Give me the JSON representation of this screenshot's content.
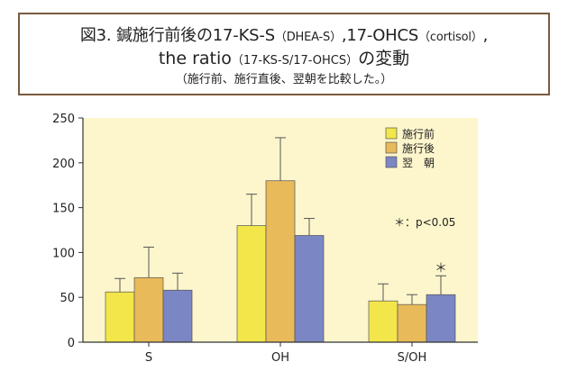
{
  "title": {
    "prefix": "図3. 鍼施行前後の17-KS-S",
    "p1": "（DHEA-S）",
    "mid1": ",17-OHCS",
    "p2": "（cortisol）",
    "comma": ",",
    "line2a": "the ratio",
    "line2b": "（17-KS-S/17-OHCS）",
    "line2c": "の変動",
    "subtitle": "（施行前、施行直後、翌朝を比較した。）"
  },
  "chart_data": {
    "type": "bar",
    "categories": [
      "S",
      "OH",
      "S/OH"
    ],
    "ylim": [
      0,
      250
    ],
    "yticks": [
      "0",
      "50",
      "100",
      "150",
      "200",
      "250"
    ],
    "grid": false,
    "legend_position": "top-right",
    "series": [
      {
        "name": "施行前",
        "color": "#f2e64a",
        "values": [
          56,
          130,
          46
        ],
        "error": [
          15,
          35,
          19
        ]
      },
      {
        "name": "施行後",
        "color": "#e8ba5a",
        "values": [
          72,
          180,
          42
        ],
        "error": [
          34,
          48,
          11
        ]
      },
      {
        "name": "翌　朝",
        "color": "#7b86c4",
        "values": [
          58,
          119,
          53
        ],
        "error": [
          19,
          19,
          21
        ]
      }
    ],
    "annotations": {
      "significance_note": "＊：p<0.05",
      "marker": "＊",
      "marker_category": 2,
      "marker_series": 2
    }
  },
  "colors": {
    "plot_background": "#fdf6cc",
    "axis": "#333333",
    "title_border": "#7a5a3e"
  }
}
